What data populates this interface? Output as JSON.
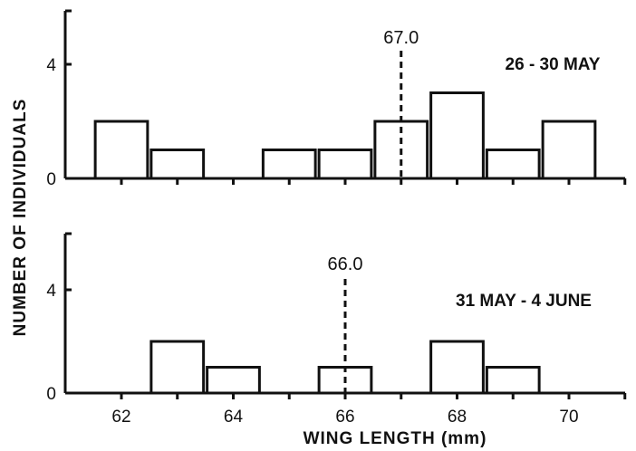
{
  "chart_data": {
    "type": "bar",
    "xlabel": "WING LENGTH (mm)",
    "ylabel": "NUMBER OF INDIVIDUALS",
    "x_ticks": [
      62,
      64,
      66,
      68,
      70
    ],
    "xlim": [
      61,
      71
    ],
    "bin_width": 1,
    "panels": [
      {
        "label": "26 - 30 MAY",
        "mean": 67.0,
        "mean_label": "67.0",
        "ylim": [
          0,
          6
        ],
        "y_ticks": [
          0,
          4
        ],
        "bins": [
          {
            "x": 62,
            "count": 2
          },
          {
            "x": 63,
            "count": 1
          },
          {
            "x": 65,
            "count": 1
          },
          {
            "x": 66,
            "count": 1
          },
          {
            "x": 67,
            "count": 2
          },
          {
            "x": 68,
            "count": 3
          },
          {
            "x": 69,
            "count": 1
          },
          {
            "x": 70,
            "count": 2
          }
        ]
      },
      {
        "label": "31 MAY - 4 JUNE",
        "mean": 66.0,
        "mean_label": "66.0",
        "ylim": [
          0,
          6
        ],
        "y_ticks": [
          0,
          4
        ],
        "bins": [
          {
            "x": 63,
            "count": 2
          },
          {
            "x": 64,
            "count": 1
          },
          {
            "x": 66,
            "count": 1
          },
          {
            "x": 68,
            "count": 2
          },
          {
            "x": 69,
            "count": 1
          }
        ]
      }
    ]
  }
}
